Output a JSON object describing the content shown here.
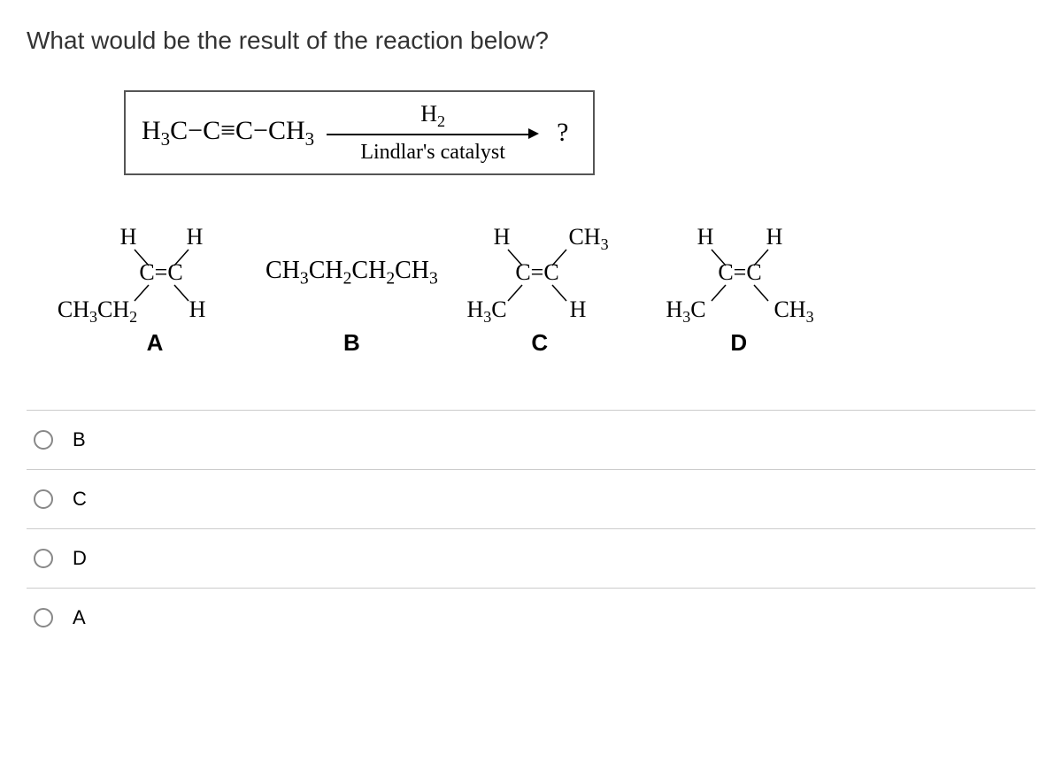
{
  "question_text": "What would be the result of the reaction below?",
  "reaction": {
    "reactant_html": "H<sub>3</sub>C−C≡C−CH<sub>3</sub>",
    "reagent_top_html": "H<sub>2</sub>",
    "reagent_bottom": "Lindlar's catalyst",
    "product_placeholder": "?"
  },
  "structures": {
    "A": {
      "top_left": "H",
      "top_right": "H",
      "bot_left_html": "CH<sub>3</sub>CH<sub>2</sub>",
      "bot_right": "H",
      "label": "A"
    },
    "B": {
      "formula_html": "CH<sub>3</sub>CH<sub>2</sub>CH<sub>2</sub>CH<sub>3</sub>",
      "label": "B"
    },
    "C": {
      "top_left": "H",
      "top_right_html": "CH<sub>3</sub>",
      "bot_left_html": "H<sub>3</sub>C",
      "bot_right": "H",
      "label": "C"
    },
    "D": {
      "top_left": "H",
      "top_right": "H",
      "bot_left_html": "H<sub>3</sub>C",
      "bot_right_html": "CH<sub>3</sub>",
      "label": "D"
    }
  },
  "options": [
    {
      "key": "B",
      "label": "B"
    },
    {
      "key": "C",
      "label": "C"
    },
    {
      "key": "D",
      "label": "D"
    },
    {
      "key": "A",
      "label": "A"
    }
  ],
  "colors": {
    "background": "#ffffff",
    "text": "#000000",
    "box_border": "#555555",
    "option_border": "#cccccc",
    "radio_border": "#888888"
  }
}
